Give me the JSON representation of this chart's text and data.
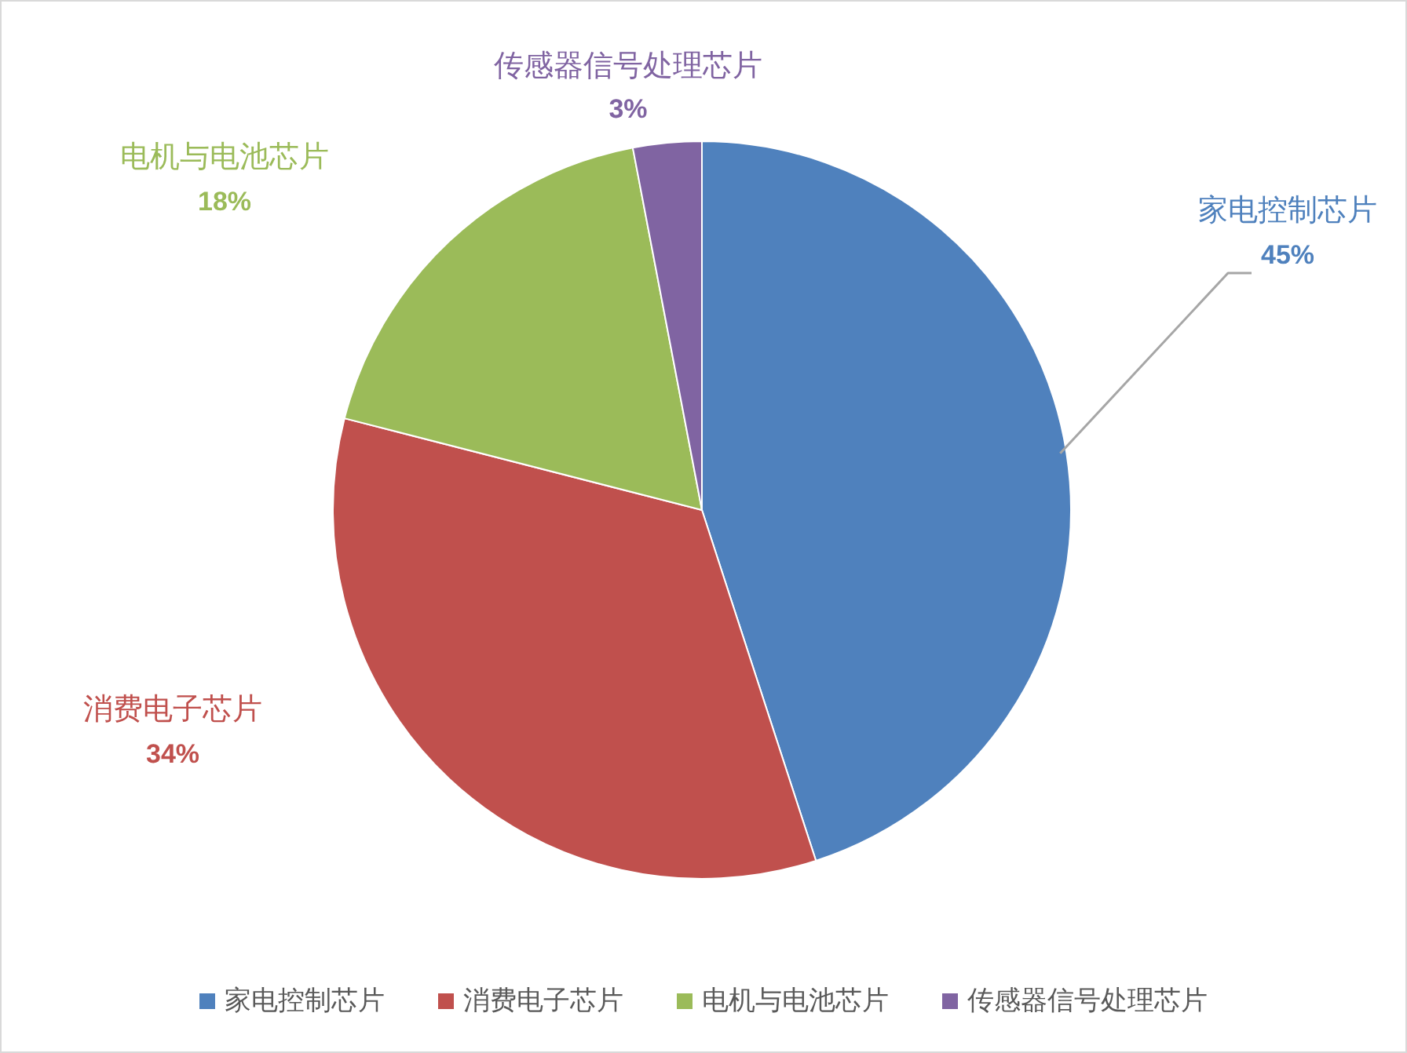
{
  "chart_data": {
    "type": "pie",
    "categories": [
      "家电控制芯片",
      "消费电子芯片",
      "电机与电池芯片",
      "传感器信号处理芯片"
    ],
    "values": [
      45,
      34,
      18,
      3
    ],
    "colors": [
      "#4f81bd",
      "#c0504d",
      "#9bbb59",
      "#8064a2"
    ],
    "value_labels": [
      "45%",
      "34%",
      "18%",
      "3%"
    ],
    "legend": "bottom"
  }
}
